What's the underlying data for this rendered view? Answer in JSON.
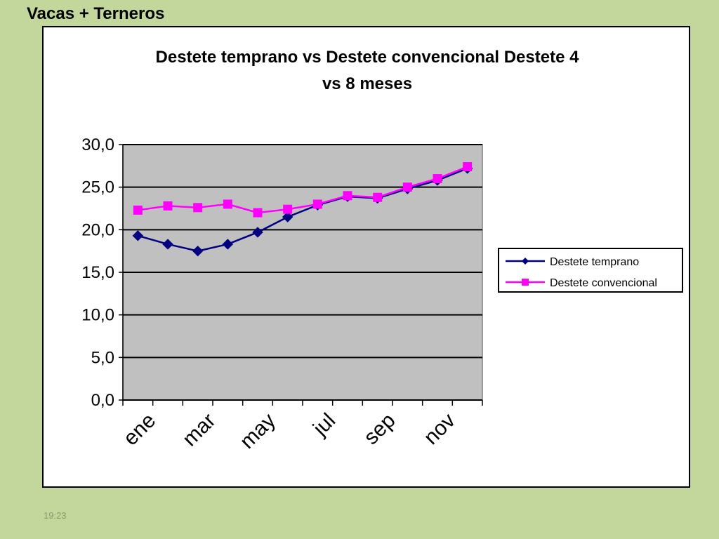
{
  "slide": {
    "title": "Vacas + Terneros",
    "timestamp": "19:23"
  },
  "colors": {
    "background": "#c3d69b",
    "plot_area": "#c0c0c0",
    "series_temprano": "#000080",
    "series_convencional": "#ff00ff"
  },
  "chart_data": {
    "type": "line",
    "title_lines": [
      "Destete temprano vs Destete convencional Destete 4",
      "vs 8 meses"
    ],
    "xlabel": "",
    "ylabel": "",
    "ylim": [
      0,
      30
    ],
    "y_ticks": [
      "0,0",
      "5,0",
      "10,0",
      "15,0",
      "20,0",
      "25,0",
      "30,0"
    ],
    "y_tick_values": [
      0,
      5,
      10,
      15,
      20,
      25,
      30
    ],
    "x_tick_labels": [
      "ene",
      "mar",
      "may",
      "jul",
      "sep",
      "nov"
    ],
    "n_points": 12,
    "grid": true,
    "legend_position": "right",
    "series": [
      {
        "name": "Destete temprano",
        "marker": "diamond",
        "values": [
          19.3,
          18.3,
          17.5,
          18.3,
          19.7,
          21.5,
          22.9,
          23.9,
          23.7,
          24.8,
          25.8,
          27.2
        ]
      },
      {
        "name": "Destete convencional",
        "marker": "square",
        "values": [
          22.3,
          22.8,
          22.6,
          23.0,
          22.0,
          22.4,
          23.0,
          24.0,
          23.8,
          25.0,
          26.0,
          27.4
        ]
      }
    ]
  }
}
